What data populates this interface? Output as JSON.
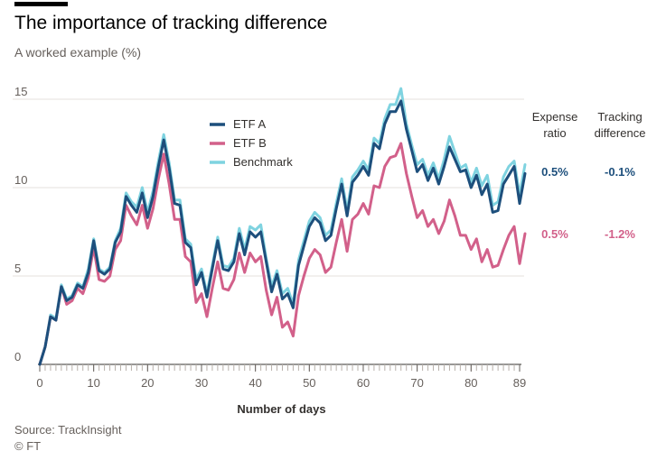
{
  "title": "The importance of tracking difference",
  "subtitle": "A worked example (%)",
  "source": "Source: TrackInsight",
  "credit": "© FT",
  "colors": {
    "etf_a": "#1d4f7c",
    "etf_b": "#d2608a",
    "benchmark": "#7fd3e0",
    "grid": "#e6e2dc",
    "axis": "#b7b0aa"
  },
  "table": {
    "headers": {
      "expense_ratio": "Expense ratio",
      "tracking_difference": "Tracking difference"
    },
    "rows": [
      {
        "series": "ETF A",
        "expense_ratio": "0.5%",
        "tracking_difference": "-0.1%"
      },
      {
        "series": "ETF B",
        "expense_ratio": "0.5%",
        "tracking_difference": "-1.2%"
      }
    ]
  },
  "chart_data": {
    "type": "line",
    "title": "The importance of tracking difference",
    "subtitle": "A worked example (%)",
    "xlabel": "Number of days",
    "ylabel": "",
    "xlim": [
      0,
      89
    ],
    "ylim": [
      0,
      15
    ],
    "x_ticks": [
      0,
      10,
      20,
      30,
      40,
      50,
      60,
      70,
      80,
      89
    ],
    "y_ticks": [
      0,
      5,
      10,
      15
    ],
    "grid": true,
    "legend_position": "top-left",
    "series": [
      {
        "name": "ETF A",
        "values": [
          0.0,
          1.0,
          2.7,
          2.5,
          4.4,
          3.6,
          3.8,
          4.5,
          4.3,
          5.2,
          7.0,
          5.3,
          5.1,
          5.4,
          6.9,
          7.5,
          9.5,
          9.0,
          8.6,
          9.7,
          8.3,
          9.5,
          11.2,
          12.7,
          11.1,
          9.1,
          9.0,
          6.9,
          6.6,
          4.5,
          5.2,
          3.8,
          5.4,
          7.0,
          5.4,
          5.3,
          5.8,
          7.4,
          6.2,
          7.5,
          7.2,
          7.5,
          5.8,
          4.1,
          5.1,
          3.7,
          4.0,
          3.2,
          5.6,
          6.7,
          7.8,
          8.3,
          8.0,
          7.0,
          7.3,
          8.8,
          10.2,
          8.4,
          10.3,
          10.7,
          11.2,
          10.7,
          12.5,
          12.2,
          13.6,
          14.3,
          14.3,
          14.9,
          13.3,
          12.1,
          10.9,
          11.3,
          10.4,
          11.1,
          10.2,
          11.2,
          12.3,
          11.6,
          10.9,
          11.0,
          10.0,
          10.7,
          9.6,
          10.2,
          8.6,
          8.7,
          10.2,
          10.7,
          11.2,
          9.1,
          10.8
        ]
      },
      {
        "name": "ETF B",
        "values": [
          0.0,
          1.0,
          2.7,
          2.5,
          4.4,
          3.4,
          3.6,
          4.3,
          4.0,
          4.9,
          6.6,
          4.8,
          4.7,
          5.0,
          6.5,
          7.0,
          9.0,
          8.4,
          7.9,
          9.0,
          7.7,
          8.8,
          10.5,
          11.9,
          10.2,
          8.2,
          8.2,
          6.1,
          5.8,
          3.5,
          4.0,
          2.7,
          4.3,
          5.8,
          4.3,
          4.2,
          4.8,
          6.3,
          5.2,
          6.3,
          5.8,
          6.1,
          4.2,
          2.8,
          3.8,
          2.1,
          2.4,
          1.6,
          3.9,
          5.0,
          6.0,
          6.5,
          6.2,
          5.2,
          5.5,
          6.9,
          8.2,
          6.4,
          8.2,
          8.5,
          9.1,
          8.5,
          10.1,
          10.0,
          11.2,
          11.7,
          11.8,
          12.5,
          10.8,
          9.5,
          8.3,
          8.7,
          7.8,
          8.2,
          7.4,
          8.1,
          9.3,
          8.4,
          7.3,
          7.3,
          6.5,
          7.1,
          5.8,
          6.5,
          5.5,
          5.6,
          6.5,
          7.3,
          7.8,
          5.7,
          7.4
        ]
      },
      {
        "name": "Benchmark",
        "values": [
          0.0,
          1.0,
          2.8,
          2.6,
          4.5,
          3.7,
          3.9,
          4.6,
          4.4,
          5.4,
          7.1,
          5.4,
          5.2,
          5.5,
          7.0,
          7.7,
          9.7,
          9.2,
          8.9,
          10.0,
          8.6,
          9.8,
          11.5,
          13.0,
          11.4,
          9.3,
          9.3,
          7.1,
          6.8,
          4.8,
          5.4,
          4.0,
          5.6,
          7.2,
          5.6,
          5.5,
          6.0,
          7.7,
          6.5,
          7.8,
          7.6,
          7.9,
          6.0,
          4.4,
          5.3,
          4.0,
          4.3,
          3.4,
          5.9,
          7.0,
          8.1,
          8.6,
          8.3,
          7.3,
          7.6,
          9.1,
          10.5,
          8.7,
          10.6,
          11.0,
          11.5,
          11.0,
          12.8,
          12.5,
          13.9,
          14.7,
          14.7,
          15.6,
          13.6,
          12.4,
          11.3,
          11.6,
          10.7,
          11.4,
          10.5,
          11.6,
          12.9,
          12.0,
          11.1,
          11.3,
          10.3,
          11.1,
          10.1,
          10.7,
          9.0,
          9.2,
          10.6,
          11.2,
          11.5,
          9.6,
          11.3
        ]
      }
    ]
  }
}
